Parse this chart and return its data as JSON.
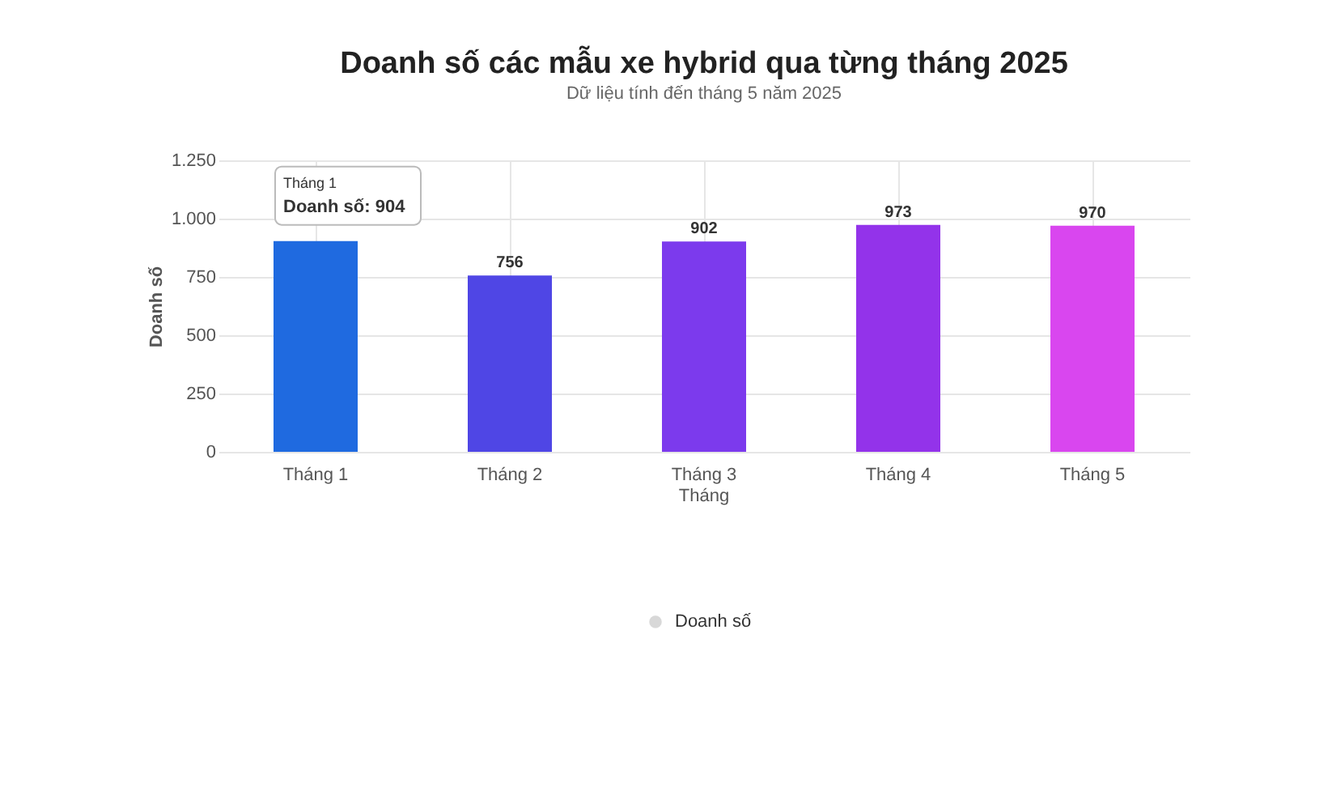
{
  "chart_data": {
    "type": "bar",
    "title": "Doanh số các mẫu xe hybrid qua từng tháng 2025",
    "subtitle": "Dữ liệu tính đến tháng 5 năm 2025",
    "ylabel": "Doanh số",
    "categories": [
      "Tháng 1",
      "Tháng 2",
      "Tháng 3\nTháng",
      "Tháng 4",
      "Tháng 5"
    ],
    "series": [
      {
        "name": "Doanh số",
        "values": [
          904,
          756,
          902,
          973,
          970
        ]
      }
    ],
    "colors": [
      "#1f6ae0",
      "#4f46e5",
      "#7c3aed",
      "#9333ea",
      "#d946ef"
    ],
    "value_labels": [
      null,
      "756",
      "902",
      "973",
      "970"
    ],
    "annotations": [
      {
        "text": "Tháng 1\nDoanh số: 904",
        "x": "Tháng 1",
        "y": 904
      }
    ],
    "ylim": [
      0,
      1250
    ],
    "yticks": [
      0,
      250,
      500,
      750,
      {
        "value": 1000,
        "label": "1.000"
      },
      {
        "value": 1250,
        "label": "1.250"
      }
    ],
    "grid": true,
    "legend": "bottom"
  }
}
